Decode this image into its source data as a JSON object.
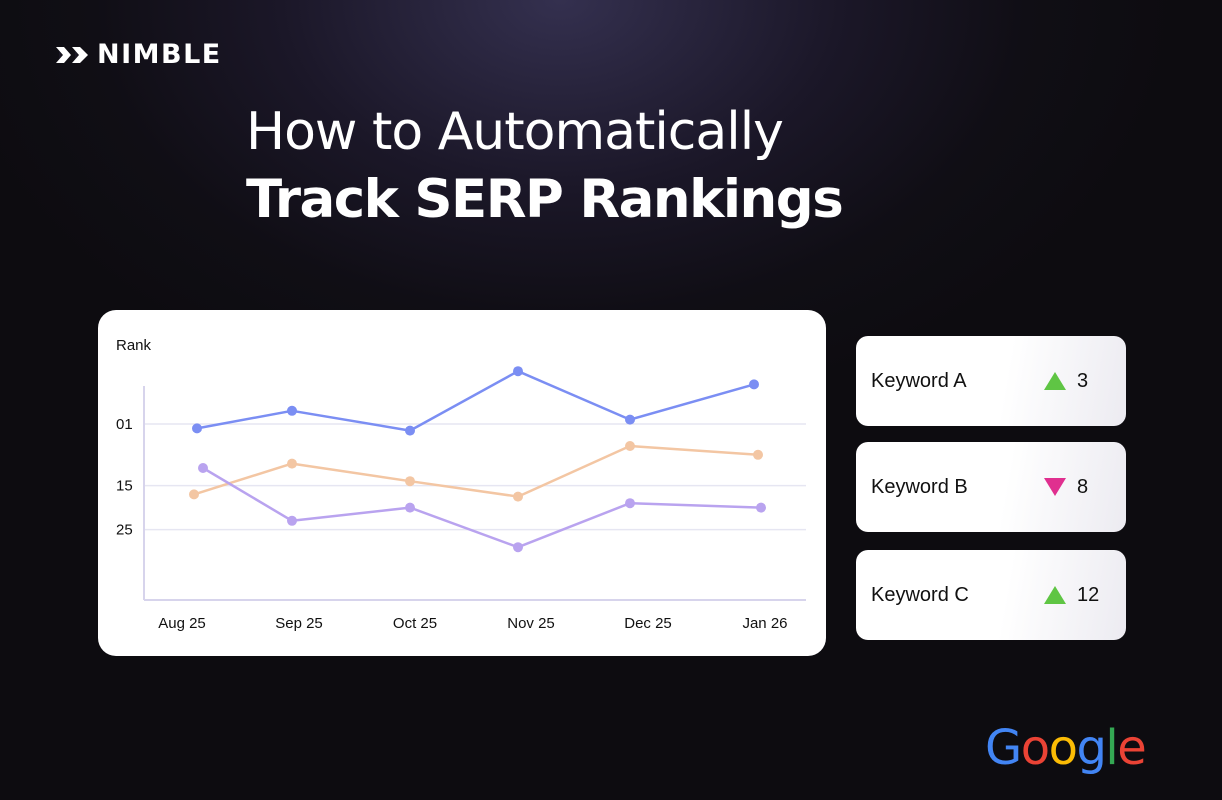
{
  "brand": {
    "logo_text": "NIMBLE",
    "logo_icon": "nimble-logo-icon"
  },
  "headline": {
    "line1": "How to Automatically",
    "line2": "Track SERP Rankings"
  },
  "chart_data": {
    "type": "line",
    "ylabel": "Rank",
    "x": [
      "Aug 25",
      "Sep 25",
      "Oct 25",
      "Nov 25",
      "Dec 25",
      "Jan 26"
    ],
    "y_ticks": [
      "01",
      "15",
      "25"
    ],
    "grid": true,
    "series": [
      {
        "color": "#7b8ef3",
        "values": [
          2,
          -2,
          2.5,
          -11,
          0,
          -8
        ]
      },
      {
        "color": "#f3c6a3",
        "values": [
          17,
          10,
          14,
          17.5,
          6,
          8
        ]
      },
      {
        "color": "#b9a3ef",
        "values": [
          11,
          23,
          20,
          29,
          19,
          20
        ]
      }
    ]
  },
  "keywords": [
    {
      "label": "Keyword A",
      "direction": "up",
      "value": "3",
      "color": "#5fc544"
    },
    {
      "label": "Keyword B",
      "direction": "down",
      "value": "8",
      "color": "#e02f8f"
    },
    {
      "label": "Keyword C",
      "direction": "up",
      "value": "12",
      "color": "#5fc544"
    }
  ],
  "footer": {
    "google_letters": [
      {
        "char": "G",
        "color": "#4285F4"
      },
      {
        "char": "o",
        "color": "#EA4335"
      },
      {
        "char": "o",
        "color": "#FBBC05"
      },
      {
        "char": "g",
        "color": "#4285F4"
      },
      {
        "char": "l",
        "color": "#34A853"
      },
      {
        "char": "e",
        "color": "#EA4335"
      }
    ]
  }
}
